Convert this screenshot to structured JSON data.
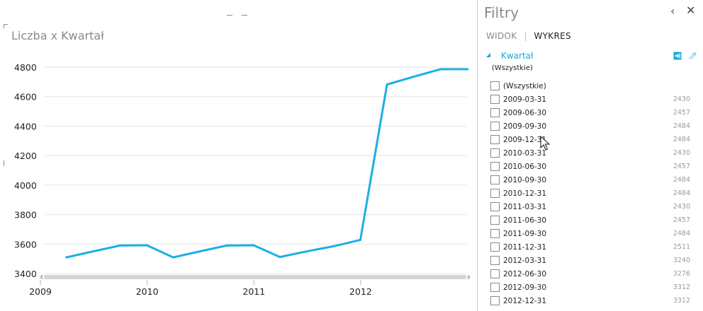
{
  "chart": {
    "title": "Liczba x Kwartał"
  },
  "chart_data": {
    "type": "line",
    "title": "Liczba x Kwartał",
    "xlabel": "",
    "ylabel": "",
    "x_ticks": [
      "2009",
      "2010",
      "2011",
      "2012"
    ],
    "y_ticks": [
      3400,
      3600,
      3800,
      4000,
      4200,
      4400,
      4600,
      4800
    ],
    "ylim": [
      3400,
      4800
    ],
    "grid": true,
    "legend": "none",
    "line_color": "#1ab0e4",
    "series": [
      {
        "x": [
          "2009-03-31",
          "2009-06-30",
          "2009-09-30",
          "2009-12-31",
          "2010-03-31",
          "2010-06-30",
          "2010-09-30",
          "2010-12-31",
          "2011-03-31",
          "2011-06-30",
          "2011-09-30",
          "2011-12-31",
          "2012-03-31",
          "2012-06-30",
          "2012-09-30",
          "2012-12-31"
        ],
        "values": [
          3510,
          3550,
          3590,
          3592,
          3510,
          3550,
          3590,
          3592,
          3512,
          3550,
          3585,
          3628,
          4682,
          4735,
          4786,
          4786
        ]
      }
    ]
  },
  "filter_pane": {
    "title": "Filtry",
    "collapse_glyph": "‹",
    "close_glyph": "✕",
    "tabs": [
      {
        "label": "WIDOK",
        "active": false
      },
      {
        "label": "WYKRES",
        "active": true
      }
    ],
    "field": {
      "name": "Kwartał",
      "summary": "(Wszystkie)",
      "icons": [
        "apply-filter-icon",
        "clear-filter-icon"
      ]
    },
    "items": [
      {
        "label": "(Wszystkie)",
        "count": ""
      },
      {
        "label": "2009-03-31",
        "count": "2430"
      },
      {
        "label": "2009-06-30",
        "count": "2457"
      },
      {
        "label": "2009-09-30",
        "count": "2484"
      },
      {
        "label": "2009-12-31",
        "count": "2484"
      },
      {
        "label": "2010-03-31",
        "count": "2430"
      },
      {
        "label": "2010-06-30",
        "count": "2457"
      },
      {
        "label": "2010-09-30",
        "count": "2484"
      },
      {
        "label": "2010-12-31",
        "count": "2484"
      },
      {
        "label": "2011-03-31",
        "count": "2430"
      },
      {
        "label": "2011-06-30",
        "count": "2457"
      },
      {
        "label": "2011-09-30",
        "count": "2484"
      },
      {
        "label": "2011-12-31",
        "count": "2511"
      },
      {
        "label": "2012-03-31",
        "count": "3240"
      },
      {
        "label": "2012-06-30",
        "count": "3276"
      },
      {
        "label": "2012-09-30",
        "count": "3312"
      },
      {
        "label": "2012-12-31",
        "count": "3312"
      }
    ]
  },
  "colors": {
    "accent": "#1aa7d8",
    "line": "#1ab0e4",
    "grid": "#e4e4e4",
    "scrollbar": "#d9d2d4"
  }
}
